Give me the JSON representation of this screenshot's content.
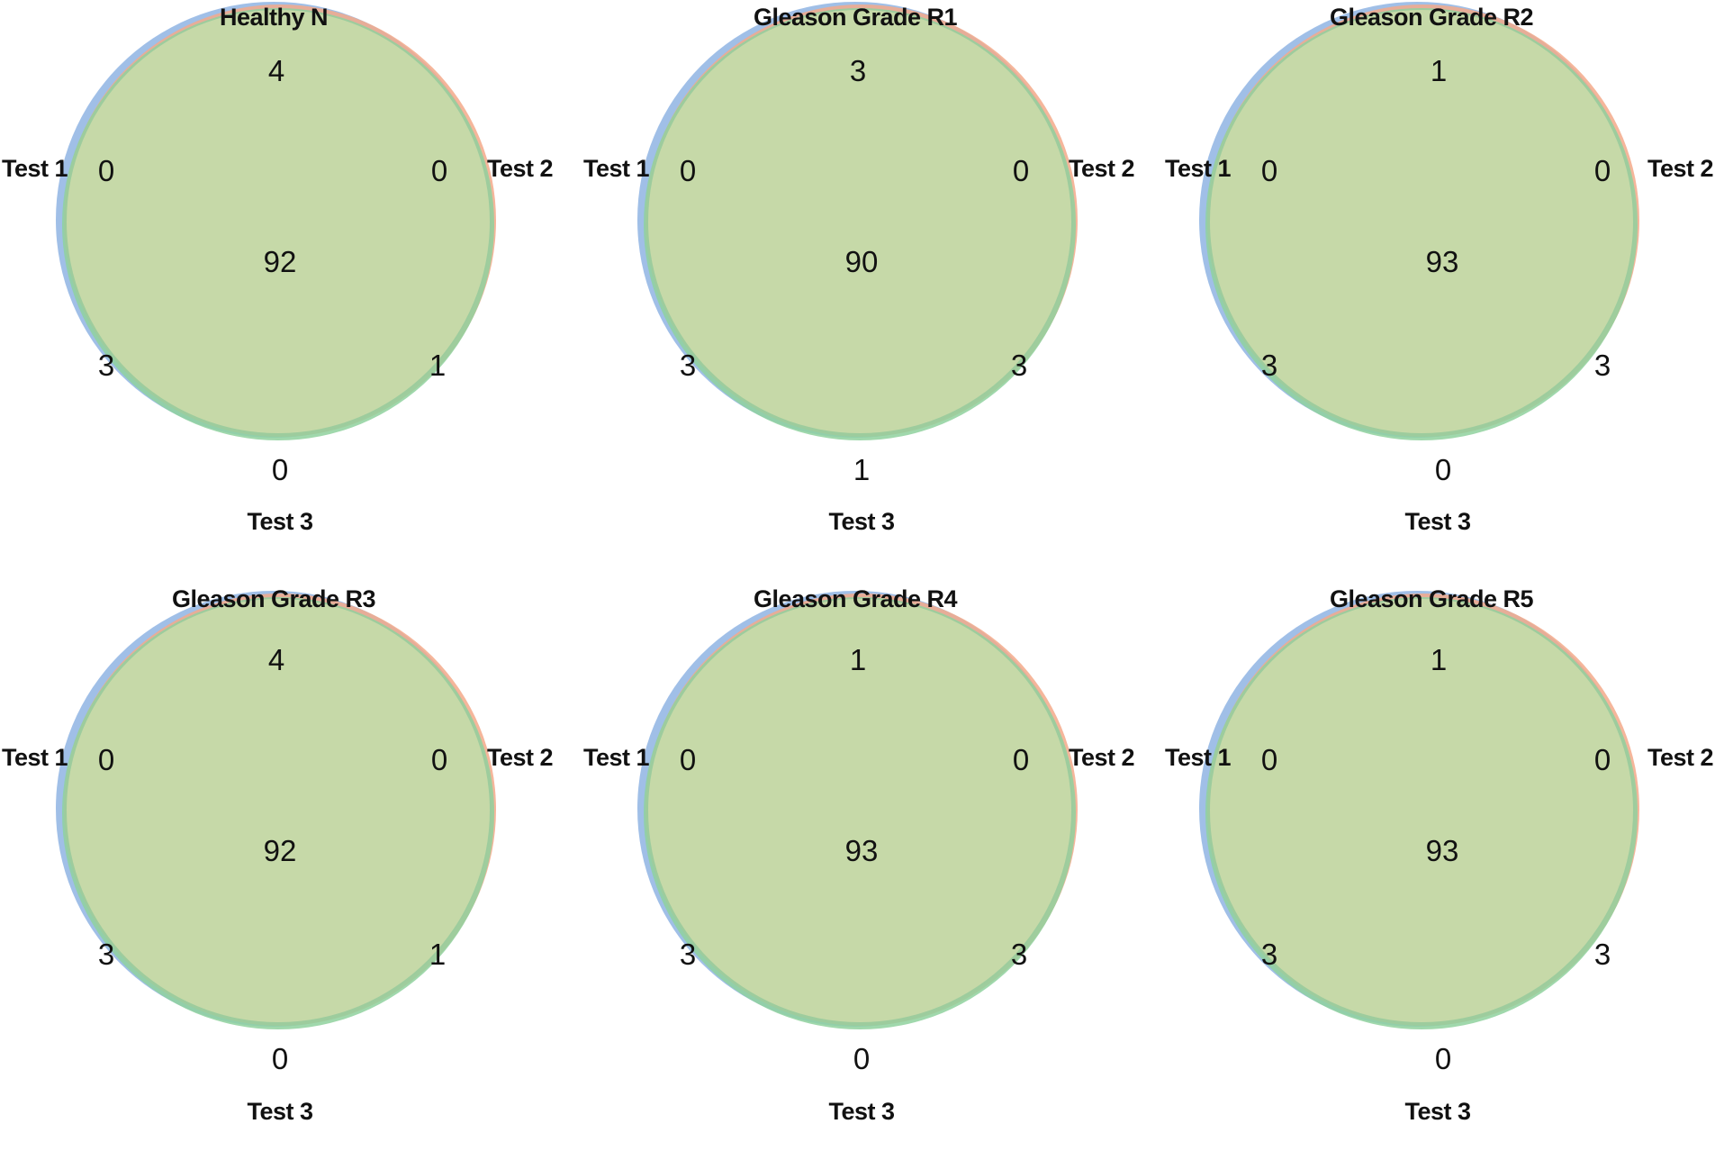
{
  "colors": {
    "test1": "#8fb4e3",
    "test2": "#f3a98a",
    "test3": "#8fd19e",
    "test1_test2": "#e4c7b3",
    "test2_test3": "#e6e298",
    "test1_test3": "#9fd9cc",
    "all_three": "#c6d9a8"
  },
  "panels": [
    {
      "title": "Healthy N",
      "set_labels": {
        "a": "Test 1",
        "b": "Test 2",
        "c": "Test 3"
      },
      "regions": {
        "a_b": "4",
        "a_only": "0",
        "b_only": "0",
        "abc": "92",
        "a_c": "3",
        "b_c": "1",
        "c_only": "0"
      }
    },
    {
      "title": "Gleason Grade R1",
      "set_labels": {
        "a": "Test 1",
        "b": "Test 2",
        "c": "Test 3"
      },
      "regions": {
        "a_b": "3",
        "a_only": "0",
        "b_only": "0",
        "abc": "90",
        "a_c": "3",
        "b_c": "3",
        "c_only": "1"
      }
    },
    {
      "title": "Gleason Grade R2",
      "set_labels": {
        "a": "Test 1",
        "b": "Test 2",
        "c": "Test 3"
      },
      "regions": {
        "a_b": "1",
        "a_only": "0",
        "b_only": "0",
        "abc": "93",
        "a_c": "3",
        "b_c": "3",
        "c_only": "0"
      }
    },
    {
      "title": "Gleason Grade R3",
      "set_labels": {
        "a": "Test 1",
        "b": "Test 2",
        "c": "Test 3"
      },
      "regions": {
        "a_b": "4",
        "a_only": "0",
        "b_only": "0",
        "abc": "92",
        "a_c": "3",
        "b_c": "1",
        "c_only": "0"
      }
    },
    {
      "title": "Gleason Grade R4",
      "set_labels": {
        "a": "Test 1",
        "b": "Test 2",
        "c": "Test 3"
      },
      "regions": {
        "a_b": "1",
        "a_only": "0",
        "b_only": "0",
        "abc": "93",
        "a_c": "3",
        "b_c": "3",
        "c_only": "0"
      }
    },
    {
      "title": "Gleason Grade R5",
      "set_labels": {
        "a": "Test 1",
        "b": "Test 2",
        "c": "Test 3"
      },
      "regions": {
        "a_b": "1",
        "a_only": "0",
        "b_only": "0",
        "abc": "93",
        "a_c": "3",
        "b_c": "3",
        "c_only": "0"
      }
    }
  ]
}
